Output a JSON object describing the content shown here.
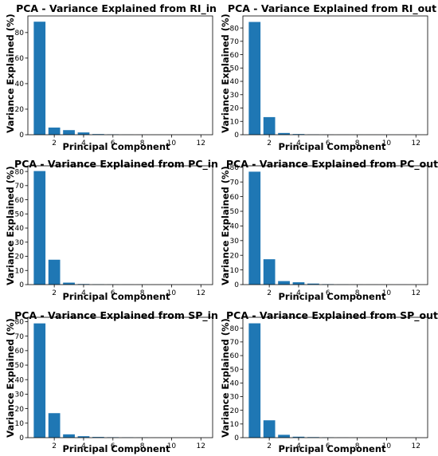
{
  "figure": {
    "colors": {
      "bar": "#1f77b4",
      "axis": "#000000",
      "background": "#ffffff"
    }
  },
  "chart_data": [
    {
      "type": "bar",
      "title": "PCA - Variance Explained from RI_in",
      "xlabel": "Principal Component",
      "ylabel": "Variance Explained (%)",
      "x": [
        1,
        2,
        3,
        4,
        5,
        6,
        7,
        8,
        9,
        10,
        11,
        12
      ],
      "values": [
        88.5,
        5.6,
        3.6,
        1.8,
        0.5,
        0.3,
        0.1,
        0.05,
        0.03,
        0.02,
        0.01,
        0.01
      ],
      "xticks": [
        2,
        4,
        6,
        8,
        10,
        12
      ],
      "yticks": [
        0,
        20,
        40,
        60,
        80
      ],
      "xlim": [
        0.2,
        12.8
      ],
      "ylim": [
        0,
        93
      ],
      "grid": false,
      "legend": "none"
    },
    {
      "type": "bar",
      "title": "PCA - Variance Explained from RI_out",
      "xlabel": "Principal Component",
      "ylabel": "Variance Explained (%)",
      "x": [
        1,
        2,
        3,
        4,
        5,
        6,
        7,
        8,
        9,
        10,
        11,
        12
      ],
      "values": [
        84.5,
        13.2,
        1.3,
        0.5,
        0.2,
        0.1,
        0.05,
        0.03,
        0.02,
        0.01,
        0.01,
        0.01
      ],
      "xticks": [
        2,
        4,
        6,
        8,
        10,
        12
      ],
      "yticks": [
        0,
        10,
        20,
        30,
        40,
        50,
        60,
        70,
        80
      ],
      "xlim": [
        0.2,
        12.8
      ],
      "ylim": [
        0,
        89
      ],
      "grid": false,
      "legend": "none"
    },
    {
      "type": "bar",
      "title": "PCA - Variance Explained from PC_in",
      "xlabel": "Principal Component",
      "ylabel": "Variance Explained (%)",
      "x": [
        1,
        2,
        3,
        4,
        5,
        6,
        7,
        8,
        9,
        10,
        11,
        12
      ],
      "values": [
        80.3,
        17.6,
        1.4,
        0.4,
        0.2,
        0.1,
        0.05,
        0.03,
        0.02,
        0.01,
        0.01,
        0.01
      ],
      "xticks": [
        2,
        4,
        6,
        8,
        10,
        12
      ],
      "yticks": [
        0,
        10,
        20,
        30,
        40,
        50,
        60,
        70,
        80
      ],
      "xlim": [
        0.2,
        12.8
      ],
      "ylim": [
        0,
        84
      ],
      "grid": false,
      "legend": "none"
    },
    {
      "type": "bar",
      "title": "PCA - Variance Explained from PC_out",
      "xlabel": "Principal Component",
      "ylabel": "Variance Explained (%)",
      "x": [
        1,
        2,
        3,
        4,
        5,
        6,
        7,
        8,
        9,
        10,
        11,
        12
      ],
      "values": [
        77.0,
        17.3,
        2.4,
        1.6,
        0.7,
        0.3,
        0.1,
        0.05,
        0.03,
        0.02,
        0.01,
        0.01
      ],
      "xticks": [
        2,
        4,
        6,
        8,
        10,
        12
      ],
      "yticks": [
        0,
        10,
        20,
        30,
        40,
        50,
        60,
        70,
        80
      ],
      "xlim": [
        0.2,
        12.8
      ],
      "ylim": [
        0,
        81
      ],
      "grid": false,
      "legend": "none"
    },
    {
      "type": "bar",
      "title": "PCA - Variance Explained from SP_in",
      "xlabel": "Principal Component",
      "ylabel": "Variance Explained (%)",
      "x": [
        1,
        2,
        3,
        4,
        5,
        6,
        7,
        8,
        9,
        10,
        11,
        12
      ],
      "values": [
        78.8,
        16.9,
        2.3,
        1.0,
        0.5,
        0.3,
        0.2,
        0.1,
        0.05,
        0.03,
        0.02,
        0.01
      ],
      "xticks": [
        2,
        4,
        6,
        8,
        10,
        12
      ],
      "yticks": [
        0,
        10,
        20,
        30,
        40,
        50,
        60,
        70,
        80
      ],
      "xlim": [
        0.2,
        12.8
      ],
      "ylim": [
        0,
        83
      ],
      "grid": false,
      "legend": "none"
    },
    {
      "type": "bar",
      "title": "PCA - Variance Explained from SP_out",
      "xlabel": "Principal Component",
      "ylabel": "Variance Explained (%)",
      "x": [
        1,
        2,
        3,
        4,
        5,
        6,
        7,
        8,
        9,
        10,
        11,
        12
      ],
      "values": [
        83.6,
        12.7,
        2.1,
        0.7,
        0.4,
        0.2,
        0.1,
        0.05,
        0.03,
        0.02,
        0.01,
        0.01
      ],
      "xticks": [
        2,
        4,
        6,
        8,
        10,
        12
      ],
      "yticks": [
        0,
        10,
        20,
        30,
        40,
        50,
        60,
        70,
        80
      ],
      "xlim": [
        0.2,
        12.8
      ],
      "ylim": [
        0,
        88
      ],
      "grid": false,
      "legend": "none"
    }
  ]
}
